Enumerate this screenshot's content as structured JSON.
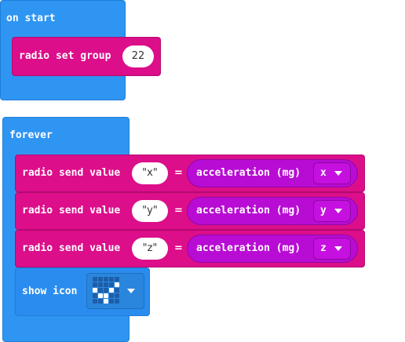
{
  "on_start": {
    "label": "on start",
    "radio_set_group_label": "radio set group",
    "group_value": "22"
  },
  "forever": {
    "label": "forever",
    "rows": [
      {
        "send_label": "radio send value",
        "name_value": "\"x\"",
        "equals": "=",
        "reporter_label": "acceleration (mg)",
        "axis": "x"
      },
      {
        "send_label": "radio send value",
        "name_value": "\"y\"",
        "equals": "=",
        "reporter_label": "acceleration (mg)",
        "axis": "y"
      },
      {
        "send_label": "radio send value",
        "name_value": "\"z\"",
        "equals": "=",
        "reporter_label": "acceleration (mg)",
        "axis": "z"
      }
    ],
    "show_icon_label": "show icon",
    "icon_pattern": [
      [
        0,
        0,
        0,
        0,
        0
      ],
      [
        0,
        0,
        0,
        0,
        1
      ],
      [
        1,
        0,
        0,
        1,
        0
      ],
      [
        0,
        1,
        1,
        0,
        0
      ],
      [
        0,
        0,
        1,
        0,
        0
      ]
    ]
  },
  "colors": {
    "events_blue": "#2f95f3",
    "radio_magenta": "#dc0e8a",
    "input_purple": "#b80cd4",
    "led_on": "#ffffff",
    "led_off": "#1e5ea8"
  }
}
